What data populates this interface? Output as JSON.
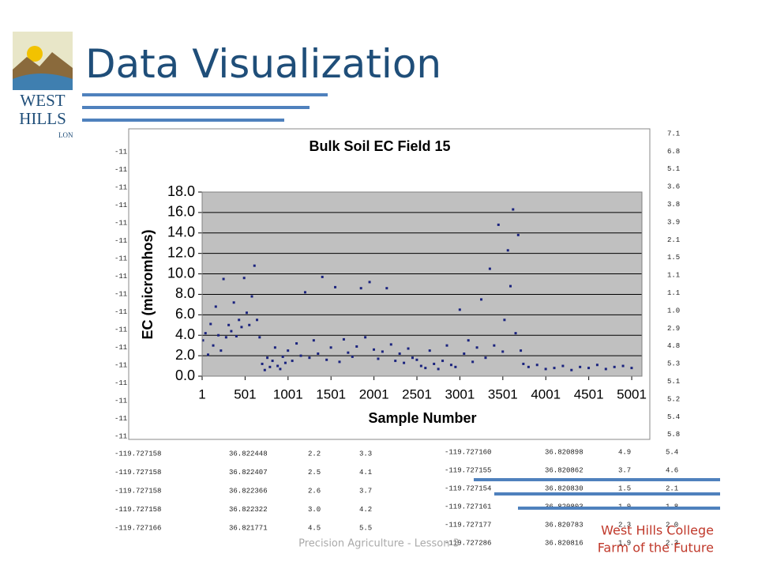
{
  "title": "Data Visualization",
  "logo": {
    "line1": "WEST",
    "line2": "HILLS",
    "tagline": "LON"
  },
  "table_left": {
    "partial": [
      "-11",
      "-11",
      "-11",
      "-11",
      "-11",
      "-11",
      "-11",
      "-11",
      "-11",
      "-11",
      "-11",
      "-11",
      "-11",
      "-11",
      "-11",
      "-11",
      "-11"
    ],
    "rows": [
      [
        "-119.727158",
        "36.822448",
        "2.2",
        "3.3"
      ],
      [
        "-119.727158",
        "36.822407",
        "2.5",
        "4.1"
      ],
      [
        "-119.727158",
        "36.822366",
        "2.6",
        "3.7"
      ],
      [
        "-119.727158",
        "36.822322",
        "3.0",
        "4.2"
      ],
      [
        "-119.727166",
        "36.821771",
        "4.5",
        "5.5"
      ]
    ]
  },
  "table_right": {
    "partial": [
      "7.1",
      "6.8",
      "5.1",
      "3.6",
      "3.8",
      "3.9",
      "2.1",
      "1.5",
      "1.1",
      "1.1",
      "1.0",
      "2.9",
      "4.8",
      "5.3",
      "5.1",
      "5.2",
      "5.4",
      "5.8"
    ],
    "rows": [
      [
        "-119.727160",
        "36.820898",
        "4.9",
        "5.4"
      ],
      [
        "-119.727155",
        "36.820862",
        "3.7",
        "4.6"
      ],
      [
        "-119.727154",
        "36.820830",
        "1.5",
        "2.1"
      ],
      [
        "-119.727161",
        "36.820803",
        "1.9",
        "1.8"
      ],
      [
        "-119.727177",
        "36.820783",
        "2.3",
        "2.0"
      ],
      [
        "-119.727286",
        "36.820816",
        "1.9",
        "2.3"
      ]
    ]
  },
  "footer": "Precision Agriculture - Lesson 3",
  "brand": [
    "West Hills College",
    "Farm of the Future"
  ],
  "chart_data": {
    "type": "scatter",
    "title": "Bulk Soil EC Field 15",
    "xlabel": "Sample Number",
    "ylabel": "EC (micromhos)",
    "color": "#1a237e",
    "grid": true,
    "xlim": [
      1,
      5120
    ],
    "xticks": [
      1,
      501,
      1001,
      1501,
      2001,
      2501,
      3001,
      3501,
      4001,
      4501,
      5001
    ],
    "ylim": [
      0,
      18
    ],
    "yticks": [
      {
        "value": 0,
        "label": "0.0"
      },
      {
        "value": 2,
        "label": "2.0"
      },
      {
        "value": 4,
        "label": "4.0"
      },
      {
        "value": 6,
        "label": "6.0"
      },
      {
        "value": 8,
        "label": "8.0"
      },
      {
        "value": 10,
        "label": "10.0"
      },
      {
        "value": 12,
        "label": "12.0"
      },
      {
        "value": 14,
        "label": "14.0"
      },
      {
        "value": 16,
        "label": "16.0"
      },
      {
        "value": 18,
        "label": "18.0"
      }
    ],
    "x": [
      10,
      40,
      70,
      100,
      130,
      160,
      190,
      220,
      250,
      280,
      310,
      340,
      370,
      400,
      430,
      460,
      490,
      520,
      550,
      580,
      610,
      640,
      670,
      700,
      730,
      760,
      790,
      820,
      850,
      880,
      910,
      940,
      970,
      1000,
      1050,
      1100,
      1150,
      1200,
      1250,
      1300,
      1350,
      1400,
      1450,
      1500,
      1550,
      1600,
      1650,
      1700,
      1750,
      1800,
      1850,
      1900,
      1950,
      2000,
      2050,
      2100,
      2150,
      2200,
      2250,
      2300,
      2350,
      2400,
      2450,
      2500,
      2550,
      2600,
      2650,
      2700,
      2750,
      2800,
      2850,
      2900,
      2950,
      3000,
      3050,
      3100,
      3150,
      3200,
      3250,
      3300,
      3350,
      3400,
      3450,
      3500,
      3520,
      3560,
      3590,
      3620,
      3650,
      3680,
      3710,
      3740,
      3800,
      3900,
      4000,
      4100,
      4200,
      4300,
      4400,
      4500,
      4600,
      4700,
      4800,
      4900,
      5000
    ],
    "values": [
      3.5,
      4.2,
      2.1,
      5.1,
      3.0,
      6.8,
      4.0,
      2.5,
      9.5,
      3.8,
      5.0,
      4.4,
      7.2,
      3.9,
      5.5,
      4.8,
      9.6,
      6.2,
      5.0,
      7.8,
      10.8,
      5.5,
      3.8,
      1.2,
      0.6,
      1.8,
      0.9,
      1.5,
      2.8,
      1.0,
      0.7,
      1.9,
      1.3,
      2.5,
      1.5,
      3.2,
      2.0,
      8.2,
      1.8,
      3.5,
      2.2,
      9.7,
      1.6,
      2.8,
      8.7,
      1.4,
      3.6,
      2.3,
      1.9,
      2.9,
      8.6,
      3.8,
      9.2,
      2.6,
      1.7,
      2.4,
      8.6,
      3.1,
      1.5,
      2.2,
      1.3,
      2.7,
      1.8,
      1.6,
      1.0,
      0.8,
      2.5,
      1.2,
      0.7,
      1.5,
      3.0,
      1.1,
      0.9,
      6.5,
      2.2,
      3.5,
      1.4,
      2.8,
      7.5,
      1.8,
      10.5,
      3.0,
      14.8,
      2.4,
      5.5,
      12.3,
      8.8,
      16.3,
      4.2,
      13.8,
      2.5,
      1.2,
      0.9,
      1.1,
      0.7,
      0.8,
      1.0,
      0.6,
      0.9,
      0.8,
      1.1,
      0.7,
      0.9,
      1.0,
      0.8
    ]
  }
}
